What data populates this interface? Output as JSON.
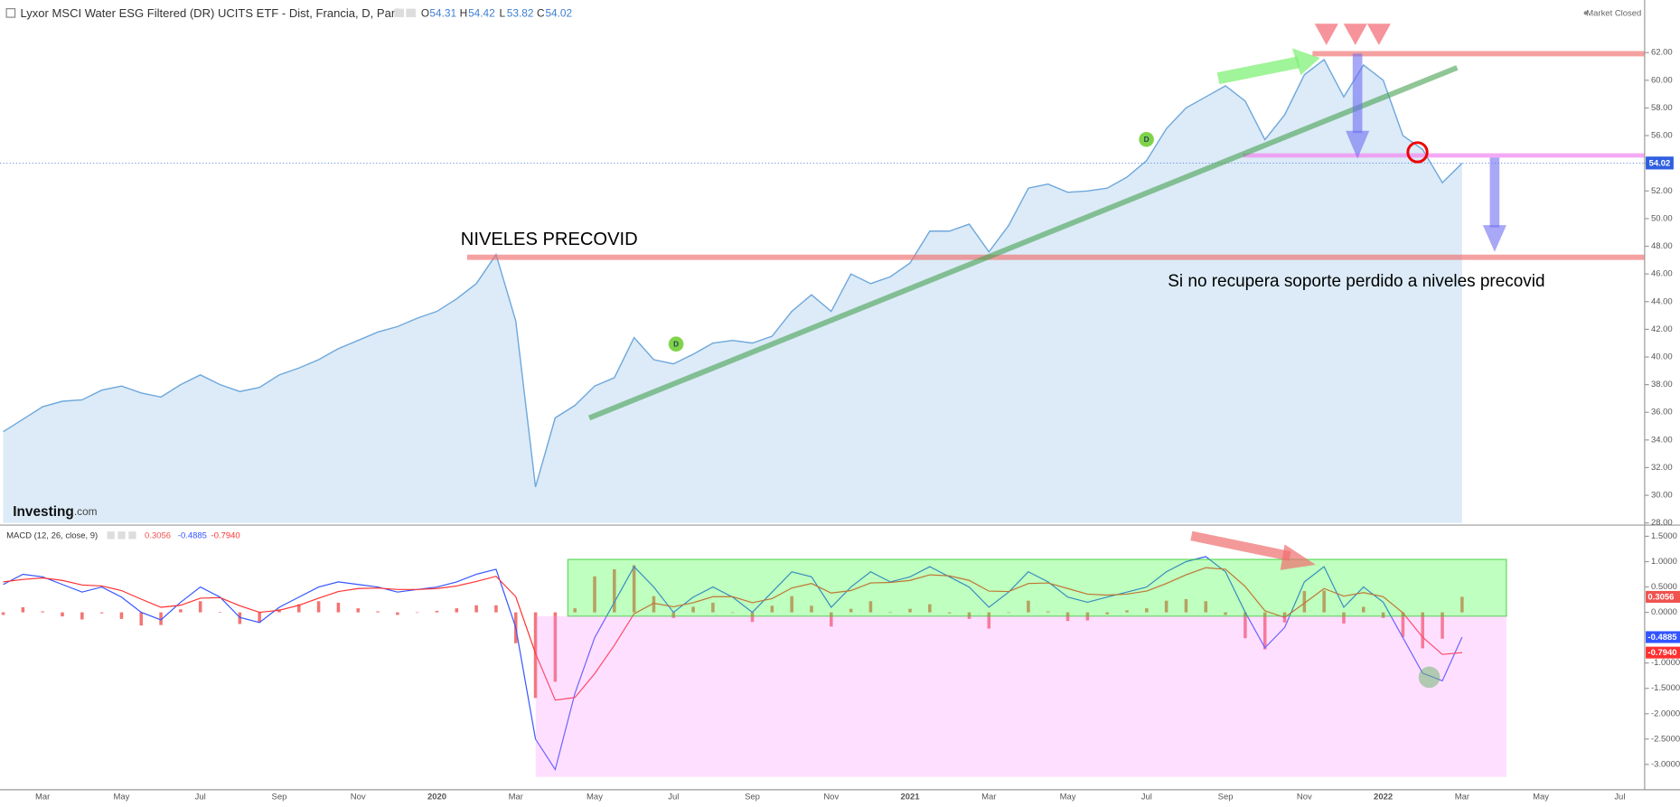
{
  "chart_data": [
    {
      "type": "area",
      "title": "Lyxor MSCI Water ESG Filtered (DR) UCITS ETF - Dist, Francia, D, París",
      "status": "Market Closed",
      "ohlc": [
        {
          "label": "O",
          "value": 54.31
        },
        {
          "label": "H",
          "value": 54.42
        },
        {
          "label": "L",
          "value": 53.82
        },
        {
          "label": "C",
          "value": 54.02
        }
      ],
      "logo": {
        "name": "Investing",
        "suffix": ".com"
      },
      "event_labels": [
        "D",
        "D"
      ],
      "annotations": [
        "NIVELES PRECOVID",
        "Si no recupera soporte perdido a niveles precovid"
      ],
      "color": "#6fa8dc",
      "fill": "#dcebf7",
      "values": [
        34.6,
        35.5,
        36.4,
        36.8,
        36.9,
        37.6,
        37.9,
        37.4,
        37.1,
        38.0,
        38.7,
        38.0,
        37.5,
        37.8,
        38.7,
        39.2,
        39.8,
        40.6,
        41.2,
        41.8,
        42.2,
        42.8,
        43.3,
        44.2,
        45.3,
        47.4,
        42.6,
        30.6,
        35.6,
        36.5,
        37.9,
        38.5,
        41.4,
        39.8,
        39.5,
        40.2,
        41.0,
        41.2,
        41.0,
        41.5,
        43.3,
        44.5,
        43.3,
        46.0,
        45.3,
        45.8,
        46.8,
        49.1,
        49.1,
        49.6,
        47.6,
        49.5,
        52.2,
        52.5,
        51.9,
        52.0,
        52.2,
        53.0,
        54.2,
        56.5,
        58.0,
        58.8,
        59.6,
        58.5,
        55.7,
        57.5,
        60.4,
        61.5,
        58.8,
        61.1,
        60.0,
        56.0,
        55.0,
        52.6,
        54.0
      ],
      "ylim": [
        28,
        62
      ],
      "yticks": [
        {
          "value": 28,
          "label": "28.00"
        },
        {
          "value": 30,
          "label": "30.00"
        },
        {
          "value": 32,
          "label": "32.00"
        },
        {
          "value": 34,
          "label": "34.00"
        },
        {
          "value": 36,
          "label": "36.00"
        },
        {
          "value": 38,
          "label": "38.00"
        },
        {
          "value": 40,
          "label": "40.00"
        },
        {
          "value": 42,
          "label": "42.00"
        },
        {
          "value": 44,
          "label": "44.00"
        },
        {
          "value": 46,
          "label": "46.00"
        },
        {
          "value": 48,
          "label": "48.00"
        },
        {
          "value": 50,
          "label": "50.00"
        },
        {
          "value": 52,
          "label": "52.00"
        },
        {
          "value": 54,
          "label": "54.00"
        },
        {
          "value": 56,
          "label": "56.00"
        },
        {
          "value": 58,
          "label": "58.00"
        },
        {
          "value": 60,
          "label": "60.00"
        },
        {
          "value": 62,
          "label": "62.00"
        }
      ]
    },
    {
      "type": "macd",
      "title": "MACD (12, 26, close, 9)",
      "series": [
        {
          "color": "#ef5350",
          "kind": "histogram",
          "values": [
            -0.05,
            0.1,
            0.02,
            -0.08,
            -0.14,
            -0.02,
            -0.13,
            -0.26,
            -0.25,
            0.06,
            0.22,
            0.01,
            -0.23,
            -0.2,
            0.06,
            0.16,
            0.22,
            0.19,
            0.08,
            0.02,
            -0.05,
            0,
            0.03,
            0.08,
            0.14,
            0.14,
            -0.61,
            -1.69,
            -1.37,
            0.08,
            0.71,
            0.85,
            0.93,
            0.32,
            -0.11,
            0.11,
            0.19,
            -0.01,
            -0.19,
            0.13,
            0.32,
            0.13,
            -0.28,
            0.07,
            0.22,
            0.01,
            0.07,
            0.16,
            -0.02,
            -0.13,
            -0.32,
            -0.01,
            0.23,
            0.02,
            -0.17,
            -0.16,
            -0.04,
            0.04,
            0.08,
            0.23,
            0.26,
            0.22,
            -0.05,
            -0.51,
            -0.73,
            -0.2,
            0.42,
            0.43,
            -0.22,
            0.11,
            -0.11,
            -0.49,
            -0.71,
            -0.52,
            0.3056
          ]
        },
        {
          "color": "#3355ff",
          "kind": "line",
          "values": [
            0.55,
            0.75,
            0.7,
            0.55,
            0.4,
            0.5,
            0.3,
            0.0,
            -0.15,
            0.2,
            0.5,
            0.3,
            -0.1,
            -0.2,
            0.1,
            0.3,
            0.5,
            0.6,
            0.55,
            0.5,
            0.4,
            0.45,
            0.5,
            0.6,
            0.75,
            0.85,
            -0.3,
            -2.5,
            -3.1,
            -1.6,
            -0.5,
            0.2,
            0.9,
            0.5,
            0.0,
            0.3,
            0.5,
            0.3,
            0.0,
            0.4,
            0.8,
            0.7,
            0.1,
            0.5,
            0.8,
            0.6,
            0.7,
            0.9,
            0.7,
            0.5,
            0.1,
            0.4,
            0.8,
            0.6,
            0.3,
            0.2,
            0.3,
            0.4,
            0.5,
            0.8,
            1.0,
            1.1,
            0.8,
            0.0,
            -0.7,
            -0.3,
            0.6,
            0.9,
            0.1,
            0.5,
            0.2,
            -0.5,
            -1.2,
            -1.35,
            -0.4885
          ]
        },
        {
          "color": "#ff3030",
          "kind": "line",
          "values": [
            0.6,
            0.65,
            0.68,
            0.63,
            0.54,
            0.52,
            0.43,
            0.26,
            0.1,
            0.14,
            0.28,
            0.29,
            0.13,
            0.0,
            0.04,
            0.14,
            0.28,
            0.41,
            0.47,
            0.48,
            0.45,
            0.45,
            0.47,
            0.52,
            0.61,
            0.71,
            0.31,
            -0.81,
            -1.73,
            -1.68,
            -1.21,
            -0.65,
            -0.03,
            0.18,
            0.11,
            0.19,
            0.31,
            0.31,
            0.19,
            0.27,
            0.48,
            0.57,
            0.38,
            0.43,
            0.58,
            0.59,
            0.63,
            0.74,
            0.72,
            0.63,
            0.42,
            0.41,
            0.57,
            0.58,
            0.47,
            0.36,
            0.34,
            0.36,
            0.42,
            0.57,
            0.74,
            0.88,
            0.85,
            0.51,
            0.03,
            -0.1,
            0.18,
            0.47,
            0.32,
            0.39,
            0.31,
            -0.01,
            -0.49,
            -0.83,
            -0.794
          ]
        }
      ],
      "readout": [
        {
          "value": 0.3056,
          "label": "0.3056"
        },
        {
          "value": -0.4885,
          "label": "-0.4885"
        },
        {
          "value": -0.794,
          "label": "-0.7940"
        }
      ],
      "ylim": [
        -3.5,
        1.7
      ],
      "yticks": [
        {
          "value": 1.5,
          "label": "1.5000"
        },
        {
          "value": 1,
          "label": "1.0000"
        },
        {
          "value": 0.5,
          "label": "0.5000"
        },
        {
          "value": 0,
          "label": "0.0000"
        },
        {
          "value": -1,
          "label": "-1.0000"
        },
        {
          "value": -1.5,
          "label": "-1.5000"
        },
        {
          "value": -2,
          "label": "-2.0000"
        },
        {
          "value": -2.5,
          "label": "-2.5000"
        },
        {
          "value": -3,
          "label": "-3.0000"
        }
      ],
      "time_labels": [
        "Mar",
        "May",
        "Jul",
        "Sep",
        "Nov",
        "2020",
        "Mar",
        "May",
        "Jul",
        "Sep",
        "Nov",
        "2021",
        "Mar",
        "May",
        "Jul",
        "Sep",
        "Nov",
        "2022",
        "Mar",
        "May",
        "Jul"
      ]
    }
  ]
}
